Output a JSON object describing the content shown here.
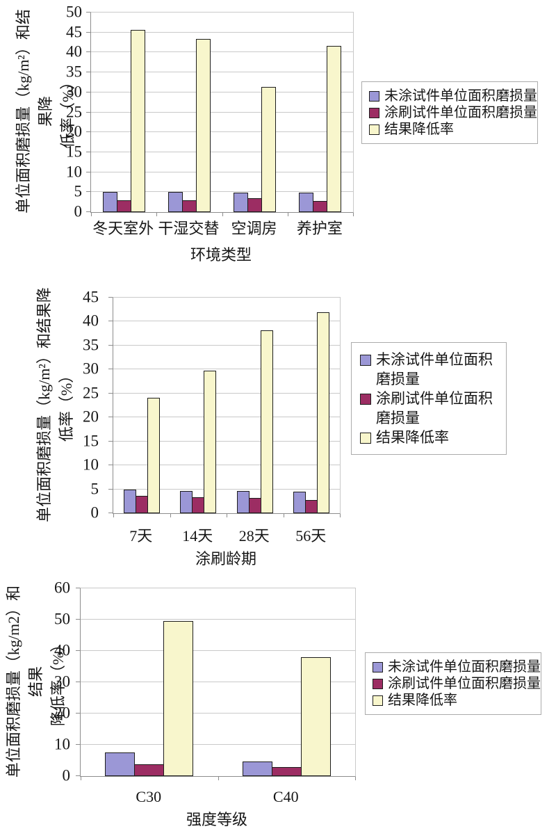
{
  "colors": {
    "series1": "#9B97D6",
    "series2": "#9C2D63",
    "series3": "#F8F6CC",
    "gridline": "#C9C9C9",
    "axis": "#8C8C8C",
    "bar_border": "#1C1C1C",
    "legend_border": "#ABABAB",
    "background": "#FFFFFF",
    "text": "#161616"
  },
  "chart_data": [
    {
      "type": "bar",
      "title": "",
      "y_axis_title": "单位面积磨损量（kg/m²）和结果降\n低率（%）",
      "x_axis_title": "环境类型",
      "categories": [
        "冬天室外",
        "干湿交替",
        "空调房",
        "养护室"
      ],
      "series": [
        {
          "name": "未涂试件单位面积磨损量",
          "color": "#9B97D6",
          "values": [
            5.1,
            5.1,
            4.9,
            4.8
          ]
        },
        {
          "name": "涂刷试件单位面积磨损量",
          "color": "#9C2D63",
          "values": [
            3.0,
            2.9,
            3.5,
            2.8
          ]
        },
        {
          "name": "结果降低率",
          "color": "#F8F6CC",
          "values": [
            45.7,
            43.3,
            31.3,
            41.6
          ]
        }
      ],
      "ylim": [
        0,
        50
      ],
      "ytick_step": 5,
      "grid": true,
      "legend_position": "right"
    },
    {
      "type": "bar",
      "title": "",
      "y_axis_title": "单位面积磨损量（kg/m²）和结果降\n低率（%）",
      "x_axis_title": "涂刷龄期",
      "categories": [
        "7天",
        "14天",
        "28天",
        "56天"
      ],
      "series": [
        {
          "name": "未涂试件单位面积磨损量",
          "color": "#9B97D6",
          "values": [
            5.0,
            4.7,
            4.7,
            4.5
          ]
        },
        {
          "name": "涂刷试件单位面积磨损量",
          "color": "#9C2D63",
          "values": [
            3.7,
            3.3,
            3.2,
            2.7
          ]
        },
        {
          "name": "结果降低率",
          "color": "#F8F6CC",
          "values": [
            24.1,
            29.7,
            38.2,
            42.0
          ]
        }
      ],
      "ylim": [
        0,
        45
      ],
      "ytick_step": 5,
      "grid": true,
      "legend_position": "right"
    },
    {
      "type": "bar",
      "title": "",
      "y_axis_title": "单位面积磨损量（kg/m2）和结果\n降低率（%）",
      "x_axis_title": "强度等级",
      "categories": [
        "C30",
        "C40"
      ],
      "series": [
        {
          "name": "未涂试件单位面积磨损量",
          "color": "#9B97D6",
          "values": [
            7.5,
            4.6
          ]
        },
        {
          "name": "涂刷试件单位面积磨损量",
          "color": "#9C2D63",
          "values": [
            3.8,
            2.8
          ]
        },
        {
          "name": "结果降低率",
          "color": "#F8F6CC",
          "values": [
            49.5,
            38.0
          ]
        }
      ],
      "ylim": [
        0,
        60
      ],
      "ytick_step": 10,
      "grid": true,
      "legend_position": "right"
    }
  ]
}
